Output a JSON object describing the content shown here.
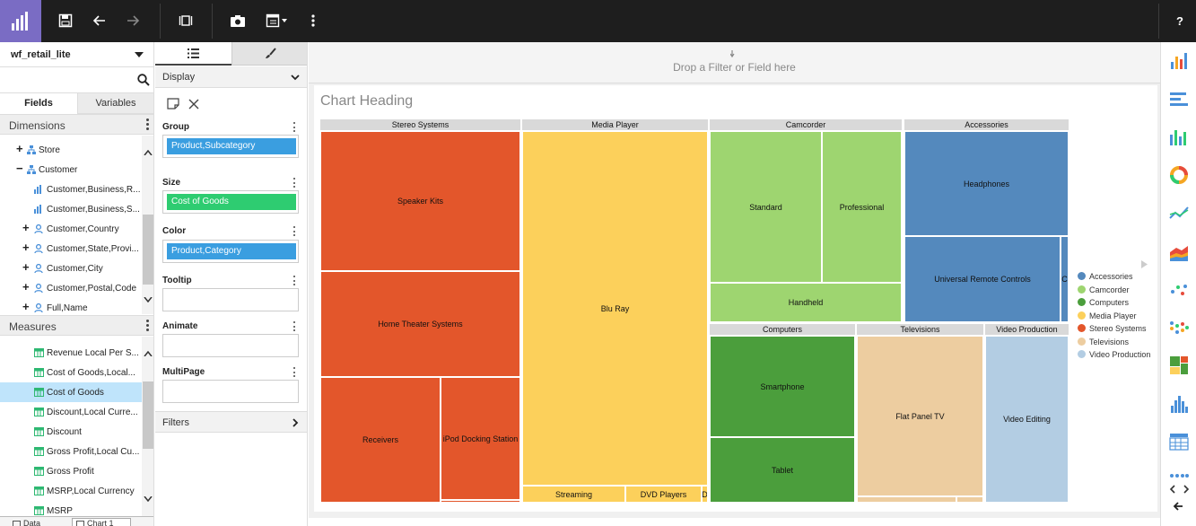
{
  "toolbar": {
    "help_label": "?"
  },
  "datasource": {
    "name": "wf_retail_lite"
  },
  "left_tabs": {
    "fields": "Fields",
    "variables": "Variables"
  },
  "dimensions": {
    "title": "Dimensions",
    "items": [
      {
        "label": "Store",
        "pm": "+",
        "icon": "hierarchy"
      },
      {
        "label": "Customer",
        "pm": "−",
        "icon": "hierarchy"
      },
      {
        "label": "Customer,Business,R...",
        "pm": "",
        "icon": "level"
      },
      {
        "label": "Customer,Business,S...",
        "pm": "",
        "icon": "level"
      },
      {
        "label": "Customer,Country",
        "pm": "+",
        "icon": "dim"
      },
      {
        "label": "Customer,State,Provi...",
        "pm": "+",
        "icon": "dim"
      },
      {
        "label": "Customer,City",
        "pm": "+",
        "icon": "dim"
      },
      {
        "label": "Customer,Postal,Code",
        "pm": "+",
        "icon": "dim"
      },
      {
        "label": "Full,Name",
        "pm": "+",
        "icon": "dim"
      }
    ]
  },
  "measures": {
    "title": "Measures",
    "items": [
      {
        "label": "Revenue Local Per S...",
        "selected": false
      },
      {
        "label": "Cost of Goods,Local...",
        "selected": false
      },
      {
        "label": "Cost of Goods",
        "selected": true
      },
      {
        "label": "Discount,Local Curre...",
        "selected": false
      },
      {
        "label": "Discount",
        "selected": false
      },
      {
        "label": "Gross Profit,Local Cu...",
        "selected": false
      },
      {
        "label": "Gross Profit",
        "selected": false
      },
      {
        "label": "MSRP,Local Currency",
        "selected": false
      },
      {
        "label": "MSRP",
        "selected": false
      }
    ]
  },
  "bottom_tabs": {
    "data": "Data",
    "chart": "Chart 1"
  },
  "query": {
    "display_label": "Display",
    "filters_label": "Filters",
    "group": {
      "label": "Group",
      "value": "Product,Subcategory"
    },
    "size": {
      "label": "Size",
      "value": "Cost of Goods"
    },
    "color": {
      "label": "Color",
      "value": "Product,Category"
    },
    "tooltip": {
      "label": "Tooltip"
    },
    "animate": {
      "label": "Animate"
    },
    "multipage": {
      "label": "MultiPage"
    }
  },
  "canvas": {
    "drop_hint": "Drop a Filter or Field here",
    "heading": "Chart Heading"
  },
  "colors": {
    "accent": "#7a6cc4",
    "pill_blue": "#3a9ee0",
    "pill_green": "#2ecc71",
    "selected": "#bfe4fb",
    "Accessories": "#5489bd",
    "Camcorder": "#9ed570",
    "Computers": "#4b9e3c",
    "Media Player": "#fcd05b",
    "Stereo Systems": "#e3562b",
    "Televisions": "#edcda0",
    "Video Production": "#b3cde3"
  },
  "chart_data": {
    "type": "treemap",
    "title": "Chart Heading",
    "size_measure": "Cost of Goods",
    "group_by": "Product,Subcategory",
    "color_by": "Product,Category",
    "legend": [
      "Accessories",
      "Camcorder",
      "Computers",
      "Media Player",
      "Stereo Systems",
      "Televisions",
      "Video Production"
    ],
    "groups": [
      {
        "name": "Stereo Systems",
        "children": [
          "Speaker Kits",
          "Home Theater Systems",
          "Receivers",
          "iPod Docking Station"
        ]
      },
      {
        "name": "Media Player",
        "children": [
          "Blu Ray",
          "Streaming",
          "DVD Players",
          "D"
        ]
      },
      {
        "name": "Camcorder",
        "children": [
          "Standard",
          "Professional",
          "Handheld"
        ]
      },
      {
        "name": "Accessories",
        "children": [
          "Headphones",
          "Universal Remote Controls",
          "C"
        ]
      },
      {
        "name": "Computers",
        "children": [
          "Smartphone",
          "Tablet"
        ]
      },
      {
        "name": "Televisions",
        "children": [
          "Flat Panel TV"
        ]
      },
      {
        "name": "Video Production",
        "children": [
          "Video Editing"
        ]
      }
    ]
  }
}
